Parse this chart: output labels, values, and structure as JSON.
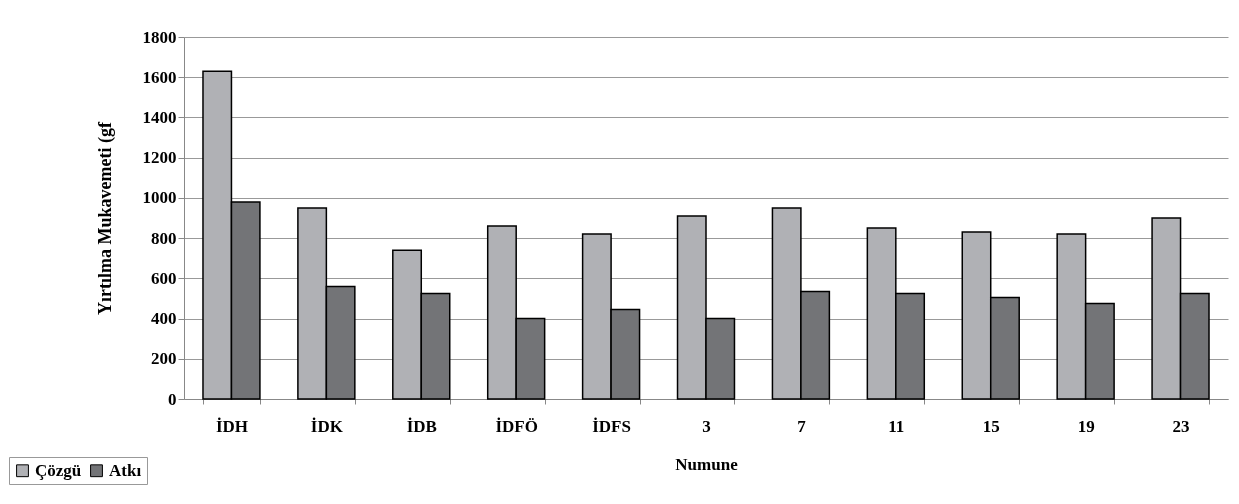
{
  "chart_data": {
    "type": "bar",
    "xlabel": "Numune",
    "ylabel": "Yırtılma Mukavemeti (gf",
    "categories": [
      "İDH",
      "İDK",
      "İDB",
      "İDFÖ",
      "İDFS",
      "3",
      "7",
      "11",
      "15",
      "19",
      "23"
    ],
    "series": [
      {
        "name": "Çözgü",
        "color": "#b0b1b5",
        "values": [
          1630,
          950,
          740,
          860,
          820,
          910,
          950,
          850,
          830,
          820,
          900
        ]
      },
      {
        "name": "Atkı",
        "color": "#737477",
        "values": [
          980,
          560,
          525,
          400,
          445,
          400,
          535,
          525,
          505,
          475,
          525
        ]
      }
    ],
    "ylim": [
      0,
      1800
    ],
    "yticks": [
      0,
      200,
      400,
      600,
      800,
      1000,
      1200,
      1400,
      1600,
      1800
    ],
    "grid": "y",
    "legend": "bottom left"
  }
}
